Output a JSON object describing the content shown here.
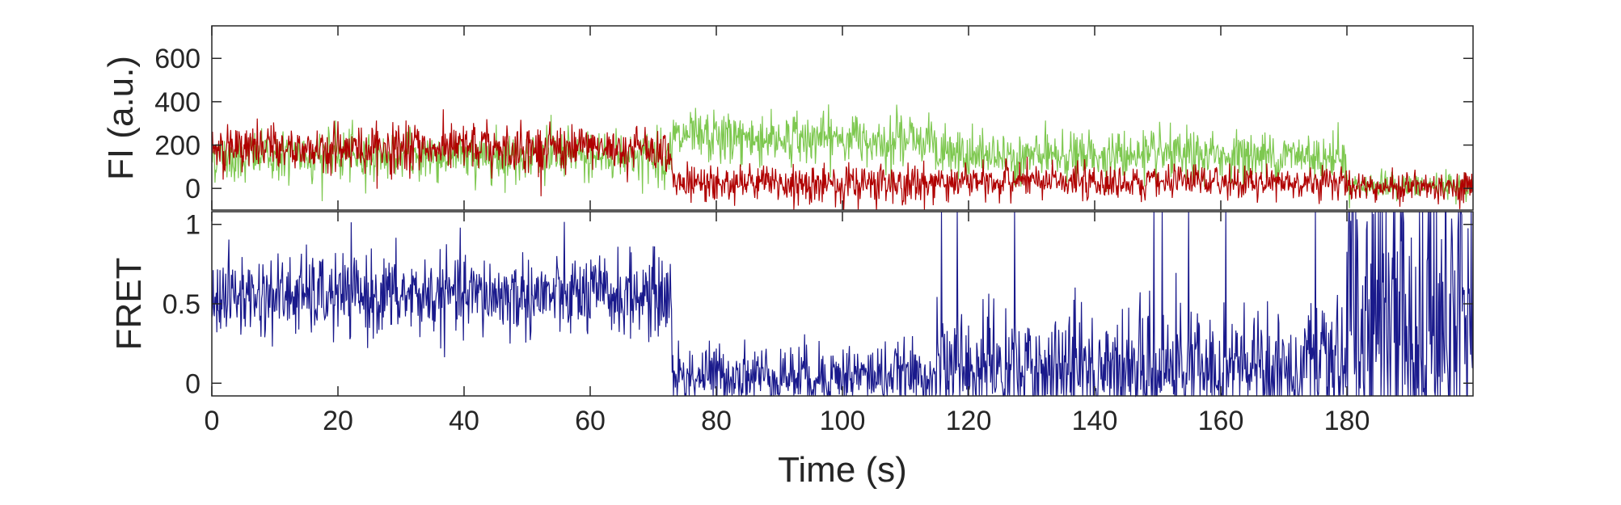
{
  "chart_data": [
    {
      "type": "line",
      "panel": "top",
      "ylabel": "FI (a.u.)",
      "ylim": [
        -100,
        750
      ],
      "yticks": [
        0,
        200,
        400,
        600
      ],
      "xlim": [
        0,
        200
      ],
      "xticks": [
        0,
        20,
        40,
        60,
        80,
        100,
        120,
        140,
        160,
        180
      ],
      "show_xtick_labels": false,
      "grid": false,
      "series_colors": [
        "#7ec850",
        "#b00000"
      ],
      "segments": [
        {
          "t0": 0,
          "t1": 73,
          "green": 150,
          "red": 185,
          "g_noise": 60,
          "r_noise": 55
        },
        {
          "t0": 73,
          "t1": 115,
          "green": 230,
          "red": 20,
          "g_noise": 60,
          "r_noise": 45
        },
        {
          "t0": 115,
          "t1": 180,
          "green": 150,
          "red": 30,
          "g_noise": 55,
          "r_noise": 40
        },
        {
          "t0": 180,
          "t1": 200,
          "green": 10,
          "red": 10,
          "g_noise": 30,
          "r_noise": 35
        }
      ]
    },
    {
      "type": "line",
      "panel": "bottom",
      "ylabel": "FRET",
      "xlabel": "Time (s)",
      "ylim": [
        -0.08,
        1.08
      ],
      "yticks": [
        0,
        0.5,
        1
      ],
      "xlim": [
        0,
        200
      ],
      "xticks": [
        0,
        20,
        40,
        60,
        80,
        100,
        120,
        140,
        160,
        180
      ],
      "grid": false,
      "series_colors": [
        "#1a1a8c"
      ],
      "segments": [
        {
          "t0": 0,
          "t1": 73,
          "fret": 0.55,
          "noise": 0.13
        },
        {
          "t0": 73,
          "t1": 115,
          "fret": 0.05,
          "noise": 0.1
        },
        {
          "t0": 115,
          "t1": 180,
          "fret": 0.1,
          "noise": 0.18
        },
        {
          "t0": 180,
          "t1": 200,
          "fret": 0.4,
          "noise": 0.45
        }
      ]
    }
  ]
}
